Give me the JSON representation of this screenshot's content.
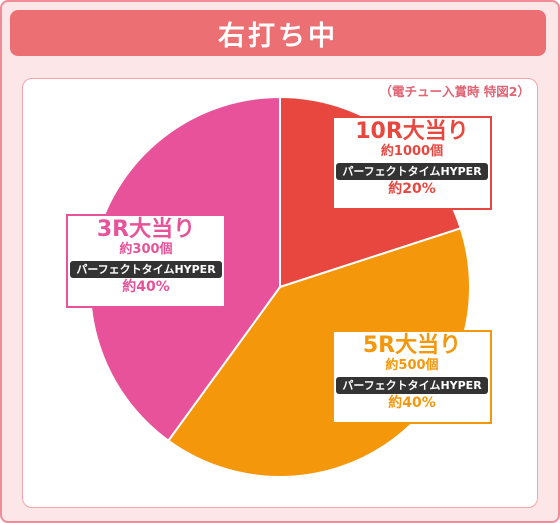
{
  "header": {
    "title": "右打ち中"
  },
  "note": "（電チュー入賞時 特図2）",
  "chart_data": {
    "type": "pie",
    "slices": [
      {
        "key": "10r",
        "title": "10R大当り",
        "count": "約1000個",
        "type_label": "パーフェクトタイムHYPER",
        "percent_label": "約20%",
        "value": 20,
        "color": "#e8473f"
      },
      {
        "key": "5r",
        "title": "5R大当り",
        "count": "約500個",
        "type_label": "パーフェクトタイムHYPER",
        "percent_label": "約40%",
        "value": 40,
        "color": "#f4970a"
      },
      {
        "key": "3r",
        "title": "3R大当り",
        "count": "約300個",
        "type_label": "パーフェクトタイムHYPER",
        "percent_label": "約40%",
        "value": 40,
        "color": "#e8529a"
      }
    ]
  }
}
